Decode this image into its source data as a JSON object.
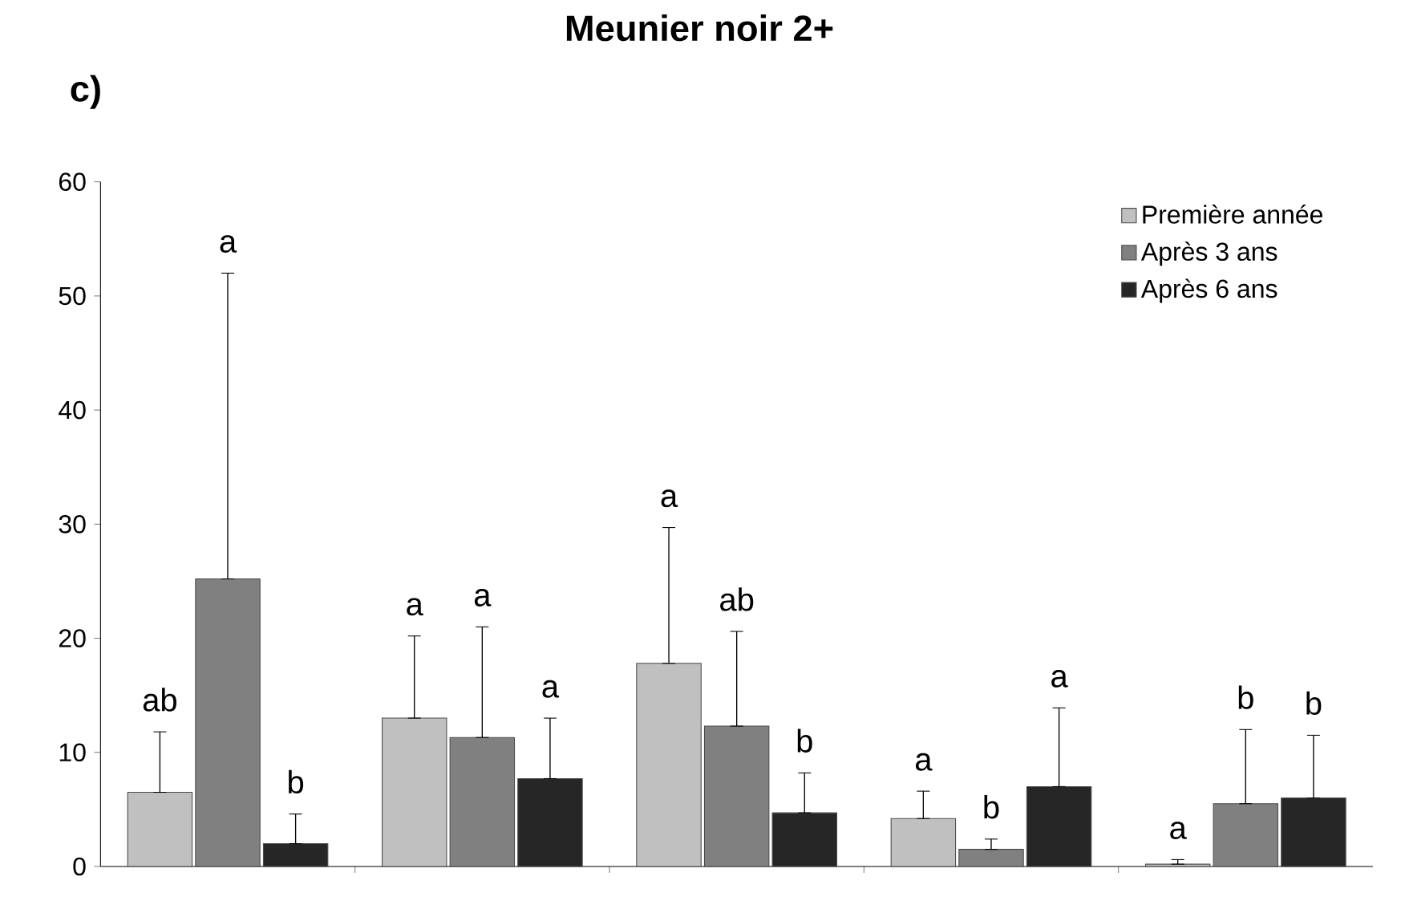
{
  "chart_data": {
    "type": "bar",
    "title": "Meunier noir 2+",
    "subtitle": "c)",
    "categories": [
      null,
      null,
      null,
      null,
      null
    ],
    "series": [
      {
        "name": "Première année",
        "color": "#c0c0c0",
        "values": [
          6.5,
          13,
          17.8,
          4.2,
          0.2
        ],
        "errors": [
          [
            6.5,
            11.8
          ],
          [
            13,
            20.2
          ],
          [
            17.8,
            29.7
          ],
          [
            4.2,
            6.6
          ],
          [
            0.2,
            0.6
          ]
        ]
      },
      {
        "name": "Après 3 ans",
        "color": "#808080",
        "values": [
          25.2,
          11.3,
          12.3,
          1.5,
          5.5
        ],
        "errors": [
          [
            25.2,
            52
          ],
          [
            11.3,
            21
          ],
          [
            12.3,
            20.6
          ],
          [
            1.5,
            2.4
          ],
          [
            5.5,
            12
          ]
        ]
      },
      {
        "name": "Après 6 ans",
        "color": "#262626",
        "values": [
          2,
          7.7,
          4.7,
          7,
          6
        ],
        "errors": [
          [
            2,
            4.6
          ],
          [
            7.7,
            13
          ],
          [
            4.7,
            8.2
          ],
          [
            7,
            13.9
          ],
          [
            6,
            11.5
          ]
        ]
      }
    ],
    "ylim": [
      0,
      60
    ],
    "yticks": [
      0,
      10,
      20,
      30,
      40,
      50,
      60
    ],
    "annotations": [
      {
        "text": "ab",
        "y": 11.8
      },
      {
        "text": "a",
        "y": 52
      },
      {
        "text": "b",
        "y": 4.6
      },
      {
        "text": "a",
        "y": 20.2
      },
      {
        "text": "a",
        "y": 21
      },
      {
        "text": "a",
        "y": 13
      },
      {
        "text": "a",
        "y": 29.7
      },
      {
        "text": "ab",
        "y": 20.6
      },
      {
        "text": "b",
        "y": 8.2
      },
      {
        "text": "a",
        "y": 6.6
      },
      {
        "text": "b",
        "y": 2.4
      },
      {
        "text": "a",
        "y": 13.9
      },
      {
        "text": "a",
        "y": 0.6
      },
      {
        "text": "b",
        "y": 12
      },
      {
        "text": "b",
        "y": 11.5
      }
    ],
    "tick_labels": "y",
    "grid": false,
    "legend": "top right"
  }
}
